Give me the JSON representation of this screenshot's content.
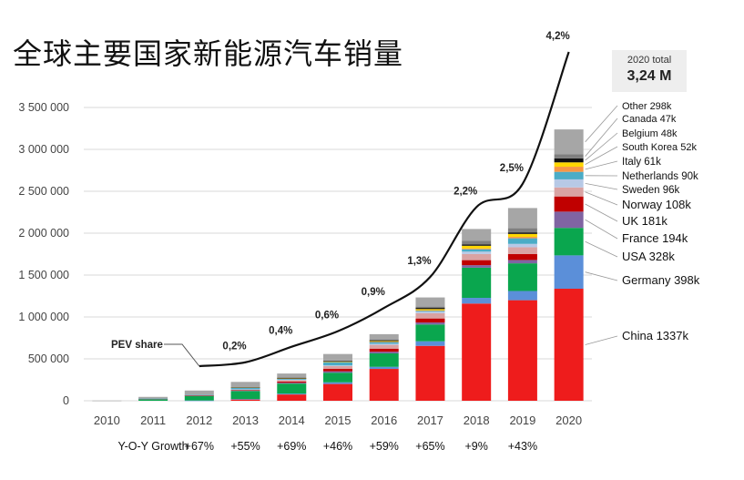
{
  "title": "全球主要国家新能源汽车销量",
  "total_box": {
    "label": "2020 total",
    "value": "3,24 M"
  },
  "growth_label": "Y-O-Y Growth",
  "share_label": "PEV share",
  "chart_data": {
    "type": "bar",
    "stacked": true,
    "title": "全球主要国家新能源汽车销量",
    "categories": [
      "2010",
      "2011",
      "2012",
      "2013",
      "2014",
      "2015",
      "2016",
      "2017",
      "2018",
      "2019",
      "2020"
    ],
    "ylim": [
      0,
      3500000
    ],
    "yticks": [
      0,
      500000,
      1000000,
      1500000,
      2000000,
      2500000,
      3000000,
      3500000
    ],
    "ytick_labels": [
      "0",
      "500 000",
      "1 000 000",
      "1 500 000",
      "2 000 000",
      "2 500 000",
      "3 000 000",
      "3 500 000"
    ],
    "grid": true,
    "series": [
      {
        "name": "China",
        "color": "#ee1c1c",
        "values": [
          0,
          0,
          0,
          15000,
          75000,
          200000,
          380000,
          655000,
          1160000,
          1200000,
          1337000
        ]
      },
      {
        "name": "Germany",
        "color": "#5b8fd9",
        "values": [
          0,
          0,
          3000,
          6000,
          10000,
          20000,
          25000,
          55000,
          68000,
          110000,
          398000
        ]
      },
      {
        "name": "USA",
        "color": "#0aa64e",
        "values": [
          0,
          20000,
          55000,
          95000,
          120000,
          115000,
          160000,
          200000,
          360000,
          330000,
          328000
        ]
      },
      {
        "name": "France",
        "color": "#8064a2",
        "values": [
          0,
          2000,
          6000,
          9000,
          10000,
          17000,
          20000,
          24000,
          30000,
          40000,
          194000
        ]
      },
      {
        "name": "UK",
        "color": "#c00000",
        "values": [
          0,
          1000,
          2000,
          3000,
          15000,
          28000,
          37000,
          48000,
          60000,
          72000,
          181000
        ]
      },
      {
        "name": "Norway",
        "color": "#d9a3a3",
        "values": [
          0,
          2000,
          4000,
          8000,
          18000,
          34000,
          45000,
          62000,
          73000,
          80000,
          108000
        ]
      },
      {
        "name": "Sweden",
        "color": "#b7c9e6",
        "values": [
          0,
          0,
          0,
          1000,
          4000,
          8000,
          13000,
          20000,
          29000,
          40000,
          96000
        ]
      },
      {
        "name": "Netherlands",
        "color": "#4bacc6",
        "values": [
          0,
          1000,
          5000,
          22000,
          15000,
          43000,
          24000,
          11000,
          28000,
          67000,
          90000
        ]
      },
      {
        "name": "Italy",
        "color": "#f79646",
        "values": [
          0,
          0,
          0,
          1000,
          1500,
          2000,
          2500,
          5000,
          10000,
          17000,
          61000
        ]
      },
      {
        "name": "South Korea",
        "color": "#ffd700",
        "values": [
          0,
          0,
          0,
          1000,
          1500,
          3000,
          6000,
          14000,
          32000,
          35000,
          52000
        ]
      },
      {
        "name": "Belgium",
        "color": "#111111",
        "values": [
          0,
          0,
          0,
          1000,
          2000,
          4000,
          9000,
          14000,
          14000,
          18000,
          48000
        ]
      },
      {
        "name": "Canada",
        "color": "#7f7f7f",
        "values": [
          0,
          0,
          0,
          1000,
          5000,
          7000,
          11000,
          16000,
          44000,
          50000,
          47000
        ]
      },
      {
        "name": "Other",
        "color": "#a6a6a6",
        "values": [
          2000,
          20000,
          47000,
          62000,
          48000,
          77000,
          62000,
          109000,
          142000,
          241000,
          298000
        ]
      }
    ],
    "legend": [
      {
        "series": "Other",
        "label": "Other 298k"
      },
      {
        "series": "Canada",
        "label": "Canada 47k"
      },
      {
        "series": "Belgium",
        "label": "Belgium 48k"
      },
      {
        "series": "South Korea",
        "label": "South Korea 52k"
      },
      {
        "series": "Italy",
        "label": "Italy 61k"
      },
      {
        "series": "Netherlands",
        "label": "Netherlands 90k"
      },
      {
        "series": "Sweden",
        "label": "Sweden 96k"
      },
      {
        "series": "Norway",
        "label": "Norway 108k"
      },
      {
        "series": "UK",
        "label": "UK 181k"
      },
      {
        "series": "France",
        "label": "France 194k"
      },
      {
        "series": "USA",
        "label": "USA 328k"
      },
      {
        "series": "Germany",
        "label": "Germany 398k"
      },
      {
        "series": "China",
        "label": "China 1337k"
      }
    ],
    "yoy_growth": [
      "",
      "",
      "+67%",
      "+55%",
      "+69%",
      "+46%",
      "+59%",
      "+65%",
      "+9%",
      "+43%",
      ""
    ],
    "pev_share": {
      "years": [
        "2012",
        "2013",
        "2014",
        "2015",
        "2016",
        "2017",
        "2018",
        "2019",
        "2020"
      ],
      "values_percent": [
        0.15,
        0.2,
        0.4,
        0.6,
        0.9,
        1.3,
        2.2,
        2.5,
        4.2
      ],
      "labels": [
        "",
        "0,2%",
        "0,4%",
        "0,6%",
        "0,9%",
        "1,3%",
        "2,2%",
        "2,5%",
        "4,2%"
      ]
    }
  }
}
